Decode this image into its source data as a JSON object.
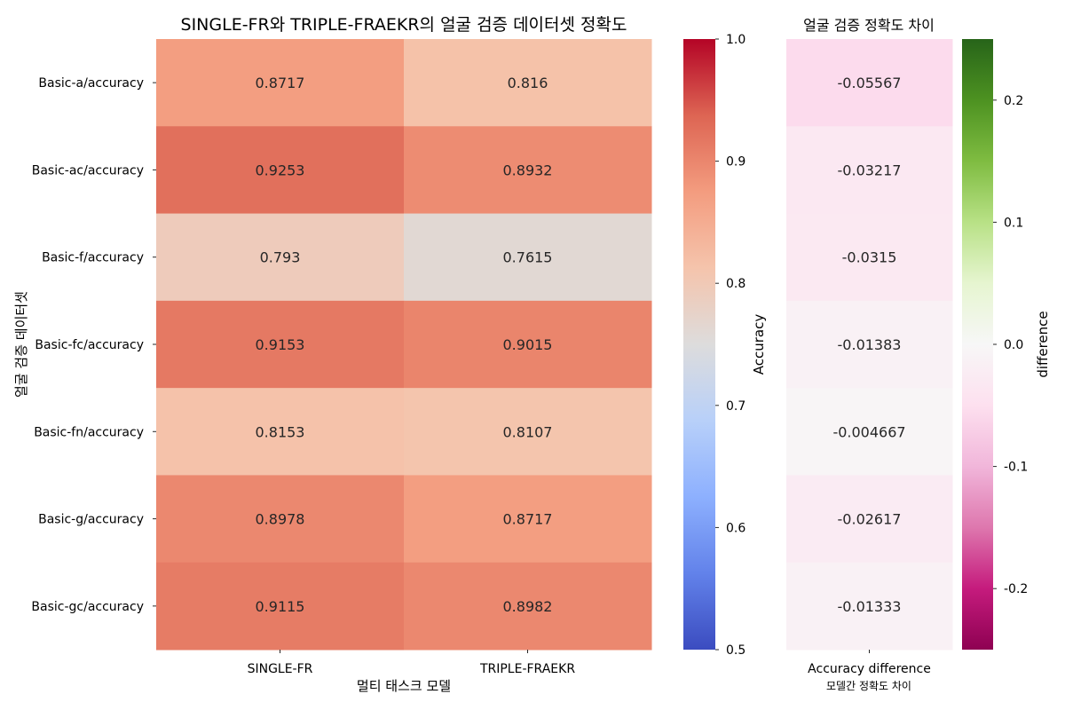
{
  "chart_data": [
    {
      "type": "heatmap",
      "title": "SINGLE-FR와 TRIPLE-FRAEKR의 얼굴 검증 데이터셋 정확도",
      "xlabel": "멀티 태스크 모델",
      "ylabel": "얼굴 검증 데이터셋",
      "columns": [
        "SINGLE-FR",
        "TRIPLE-FRAEKR"
      ],
      "rows": [
        "Basic-a/accuracy",
        "Basic-ac/accuracy",
        "Basic-f/accuracy",
        "Basic-fc/accuracy",
        "Basic-fn/accuracy",
        "Basic-g/accuracy",
        "Basic-gc/accuracy"
      ],
      "values": [
        [
          0.8717,
          0.816
        ],
        [
          0.9253,
          0.8932
        ],
        [
          0.793,
          0.7615
        ],
        [
          0.9153,
          0.9015
        ],
        [
          0.8153,
          0.8107
        ],
        [
          0.8978,
          0.8717
        ],
        [
          0.9115,
          0.8982
        ]
      ],
      "labels": [
        [
          "0.8717",
          "0.816"
        ],
        [
          "0.9253",
          "0.8932"
        ],
        [
          "0.793",
          "0.7615"
        ],
        [
          "0.9153",
          "0.9015"
        ],
        [
          "0.8153",
          "0.8107"
        ],
        [
          "0.8978",
          "0.8717"
        ],
        [
          "0.9115",
          "0.8982"
        ]
      ],
      "colormap": "coolwarm",
      "colorbar": {
        "label": "Accuracy",
        "range": [
          0.5,
          1.0
        ],
        "ticks": [
          "0.5",
          "0.6",
          "0.7",
          "0.8",
          "0.9",
          "1.0"
        ]
      }
    },
    {
      "type": "heatmap",
      "title": "얼굴 검증 정확도 차이",
      "xlabel": "모델간 정확도 차이",
      "columns": [
        "Accuracy difference"
      ],
      "rows": [
        "Basic-a/accuracy",
        "Basic-ac/accuracy",
        "Basic-f/accuracy",
        "Basic-fc/accuracy",
        "Basic-fn/accuracy",
        "Basic-g/accuracy",
        "Basic-gc/accuracy"
      ],
      "values": [
        [
          -0.05567
        ],
        [
          -0.03217
        ],
        [
          -0.0315
        ],
        [
          -0.01383
        ],
        [
          -0.004667
        ],
        [
          -0.02617
        ],
        [
          -0.01333
        ]
      ],
      "labels": [
        [
          "-0.05567"
        ],
        [
          "-0.03217"
        ],
        [
          "-0.0315"
        ],
        [
          "-0.01383"
        ],
        [
          "-0.004667"
        ],
        [
          "-0.02617"
        ],
        [
          "-0.01333"
        ]
      ],
      "colormap": "PiYG",
      "colorbar": {
        "label": "difference",
        "range": [
          -0.25,
          0.25
        ],
        "ticks": [
          "-0.2",
          "-0.1",
          "0.0",
          "0.1",
          "0.2"
        ]
      }
    }
  ]
}
